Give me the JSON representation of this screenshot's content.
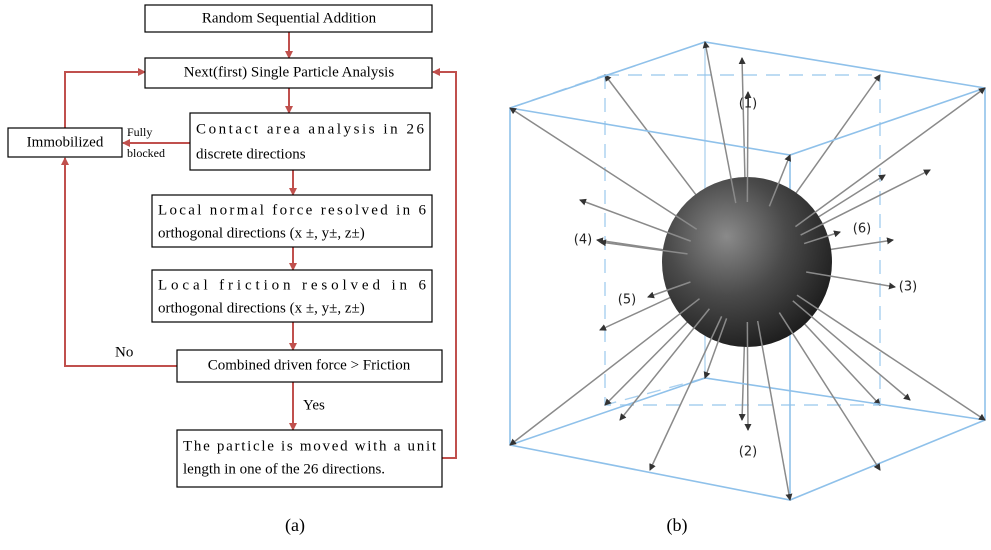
{
  "flowchart": {
    "nodes": [
      {
        "lines": [
          "Random Sequential Addition"
        ]
      },
      {
        "lines": [
          "Next(first) Single Particle Analysis"
        ]
      },
      {
        "lines": [
          "Contact area analysis in 26",
          "discrete directions"
        ]
      },
      {
        "lines": [
          "Immobilized"
        ]
      },
      {
        "lines": [
          "Local normal force resolved in 6",
          "orthogonal directions (x ±, y±, z±)"
        ]
      },
      {
        "lines": [
          "Local friction resolved in 6",
          "orthogonal directions (x ±, y±, z±)"
        ]
      },
      {
        "lines": [
          "Combined driven force > Friction"
        ]
      },
      {
        "lines": [
          "The particle is moved with a unit",
          "length in one of the 26 directions."
        ]
      }
    ],
    "edge_labels": {
      "fully_blocked": [
        "Fully",
        "blocked"
      ],
      "no": "No",
      "yes": "Yes"
    },
    "caption": "(a)"
  },
  "particle": {
    "direction_labels": [
      "(1)",
      "(2)",
      "(3)",
      "(4)",
      "(5)",
      "(6)"
    ],
    "caption": "(b)"
  }
}
